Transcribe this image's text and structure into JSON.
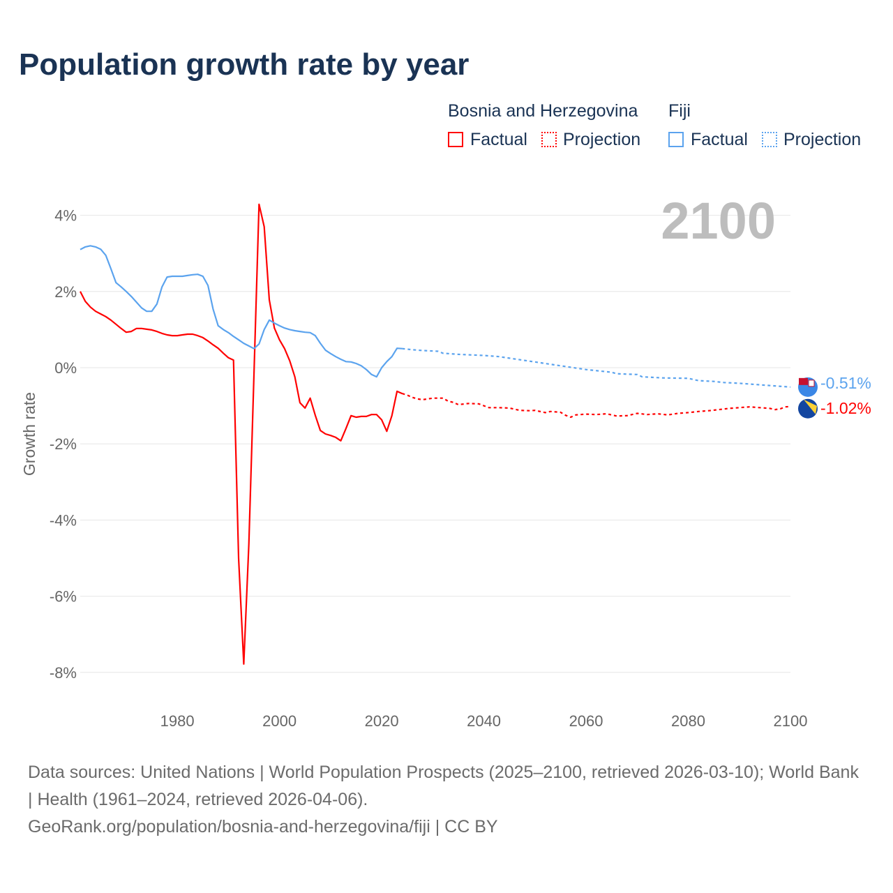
{
  "title": "Population growth rate by year",
  "legend": {
    "groups": [
      {
        "name": "Bosnia and Herzegovina",
        "factual": "Factual",
        "projection": "Projection",
        "color": "#ff0000"
      },
      {
        "name": "Fiji",
        "factual": "Factual",
        "projection": "Projection",
        "color": "#5ba3ee"
      }
    ]
  },
  "year_label": "2100",
  "source_lines": [
    "Data sources: United Nations | World Population Prospects (2025–2100, retrieved 2026-03-10); World Bank | Health (1961–2024, retrieved 2026-04-06).",
    "GeoRank.org/population/bosnia-and-herzegovina/fiji | CC BY"
  ],
  "chart_data": {
    "type": "line",
    "title": "Population growth rate by year",
    "xlabel": "",
    "ylabel": "Growth rate",
    "xlim": [
      1961,
      2100
    ],
    "ylim": [
      -8.8,
      4.5
    ],
    "xticks": [
      1980,
      2000,
      2020,
      2040,
      2060,
      2080,
      2100
    ],
    "yticks": [
      {
        "v": 4,
        "label": "4%"
      },
      {
        "v": 2,
        "label": "2%"
      },
      {
        "v": 0,
        "label": "0%"
      },
      {
        "v": -2,
        "label": "-2%"
      },
      {
        "v": -4,
        "label": "-4%"
      },
      {
        "v": -6,
        "label": "-6%"
      },
      {
        "v": -8,
        "label": "-8%"
      }
    ],
    "grid": true,
    "series": [
      {
        "name": "Bosnia and Herzegovina",
        "kind": "factual",
        "color": "#ff0000",
        "end_label": "-1.02%",
        "x": [
          1961,
          1962,
          1963,
          1964,
          1965,
          1966,
          1967,
          1968,
          1969,
          1970,
          1971,
          1972,
          1973,
          1974,
          1975,
          1976,
          1977,
          1978,
          1979,
          1980,
          1981,
          1982,
          1983,
          1984,
          1985,
          1986,
          1987,
          1988,
          1989,
          1990,
          1991,
          1992,
          1993,
          1994,
          1995,
          1996,
          1997,
          1998,
          1999,
          2000,
          2001,
          2002,
          2003,
          2004,
          2005,
          2006,
          2007,
          2008,
          2009,
          2010,
          2011,
          2012,
          2013,
          2014,
          2015,
          2016,
          2017,
          2018,
          2019,
          2020,
          2021,
          2022,
          2023,
          2024
        ],
        "y": [
          2.0,
          1.74,
          1.59,
          1.48,
          1.41,
          1.34,
          1.25,
          1.14,
          1.03,
          0.93,
          0.95,
          1.03,
          1.03,
          1.01,
          0.99,
          0.95,
          0.9,
          0.86,
          0.84,
          0.84,
          0.86,
          0.88,
          0.88,
          0.84,
          0.79,
          0.7,
          0.6,
          0.51,
          0.38,
          0.26,
          0.2,
          -5.0,
          -7.78,
          -4.63,
          -0.2,
          4.29,
          3.7,
          1.78,
          1.04,
          0.73,
          0.5,
          0.18,
          -0.24,
          -0.92,
          -1.06,
          -0.8,
          -1.25,
          -1.65,
          -1.74,
          -1.78,
          -1.83,
          -1.92,
          -1.6,
          -1.26,
          -1.3,
          -1.28,
          -1.28,
          -1.23,
          -1.23,
          -1.37,
          -1.67,
          -1.26,
          -0.62,
          -0.68
        ]
      },
      {
        "name": "Bosnia and Herzegovina",
        "kind": "projection",
        "color": "#ff0000",
        "x": [
          2024,
          2025,
          2026,
          2027,
          2028,
          2030,
          2032,
          2033,
          2034,
          2035,
          2037,
          2039,
          2040,
          2041,
          2043,
          2045,
          2047,
          2049,
          2050,
          2052,
          2053,
          2055,
          2056,
          2057,
          2058,
          2060,
          2062,
          2064,
          2066,
          2068,
          2070,
          2072,
          2074,
          2076,
          2078,
          2080,
          2082,
          2084,
          2086,
          2088,
          2090,
          2092,
          2094,
          2096,
          2097,
          2098,
          2099,
          2100
        ],
        "y": [
          -0.68,
          -0.72,
          -0.78,
          -0.82,
          -0.84,
          -0.8,
          -0.8,
          -0.88,
          -0.91,
          -0.97,
          -0.94,
          -0.95,
          -1.0,
          -1.05,
          -1.05,
          -1.06,
          -1.12,
          -1.13,
          -1.12,
          -1.18,
          -1.15,
          -1.17,
          -1.25,
          -1.3,
          -1.24,
          -1.22,
          -1.23,
          -1.21,
          -1.27,
          -1.26,
          -1.2,
          -1.23,
          -1.21,
          -1.24,
          -1.2,
          -1.18,
          -1.15,
          -1.13,
          -1.1,
          -1.07,
          -1.05,
          -1.03,
          -1.05,
          -1.07,
          -1.1,
          -1.08,
          -1.03,
          -1.02
        ]
      },
      {
        "name": "Fiji",
        "kind": "factual",
        "color": "#5ba3ee",
        "end_label": "-0.51%",
        "x": [
          1961,
          1962,
          1963,
          1964,
          1965,
          1966,
          1967,
          1968,
          1969,
          1970,
          1971,
          1972,
          1973,
          1974,
          1975,
          1976,
          1977,
          1978,
          1979,
          1980,
          1981,
          1982,
          1983,
          1984,
          1985,
          1986,
          1987,
          1988,
          1989,
          1990,
          1991,
          1992,
          1993,
          1994,
          1995,
          1996,
          1997,
          1998,
          1999,
          2000,
          2001,
          2002,
          2003,
          2004,
          2005,
          2006,
          2007,
          2008,
          2009,
          2010,
          2011,
          2012,
          2013,
          2014,
          2015,
          2016,
          2017,
          2018,
          2019,
          2020,
          2021,
          2022,
          2023,
          2024
        ],
        "y": [
          3.1,
          3.17,
          3.2,
          3.17,
          3.11,
          2.95,
          2.6,
          2.23,
          2.12,
          2.0,
          1.87,
          1.72,
          1.57,
          1.48,
          1.48,
          1.67,
          2.12,
          2.38,
          2.4,
          2.4,
          2.4,
          2.42,
          2.44,
          2.45,
          2.4,
          2.16,
          1.54,
          1.1,
          1.0,
          0.92,
          0.82,
          0.73,
          0.64,
          0.57,
          0.5,
          0.62,
          1.0,
          1.25,
          1.17,
          1.1,
          1.04,
          1.0,
          0.97,
          0.95,
          0.93,
          0.92,
          0.84,
          0.64,
          0.46,
          0.37,
          0.29,
          0.22,
          0.16,
          0.15,
          0.11,
          0.05,
          -0.05,
          -0.18,
          -0.24,
          0.0,
          0.16,
          0.29,
          0.51,
          0.5
        ]
      },
      {
        "name": "Fiji",
        "kind": "projection",
        "color": "#5ba3ee",
        "x": [
          2024,
          2026,
          2028,
          2031,
          2032,
          2035,
          2040,
          2043,
          2045,
          2050,
          2055,
          2060,
          2065,
          2066,
          2070,
          2071,
          2075,
          2080,
          2082,
          2085,
          2087,
          2090,
          2095,
          2100
        ],
        "y": [
          0.5,
          0.47,
          0.45,
          0.43,
          0.38,
          0.35,
          0.32,
          0.29,
          0.25,
          0.15,
          0.05,
          -0.05,
          -0.12,
          -0.16,
          -0.18,
          -0.24,
          -0.27,
          -0.28,
          -0.34,
          -0.36,
          -0.39,
          -0.41,
          -0.46,
          -0.51
        ]
      }
    ]
  }
}
